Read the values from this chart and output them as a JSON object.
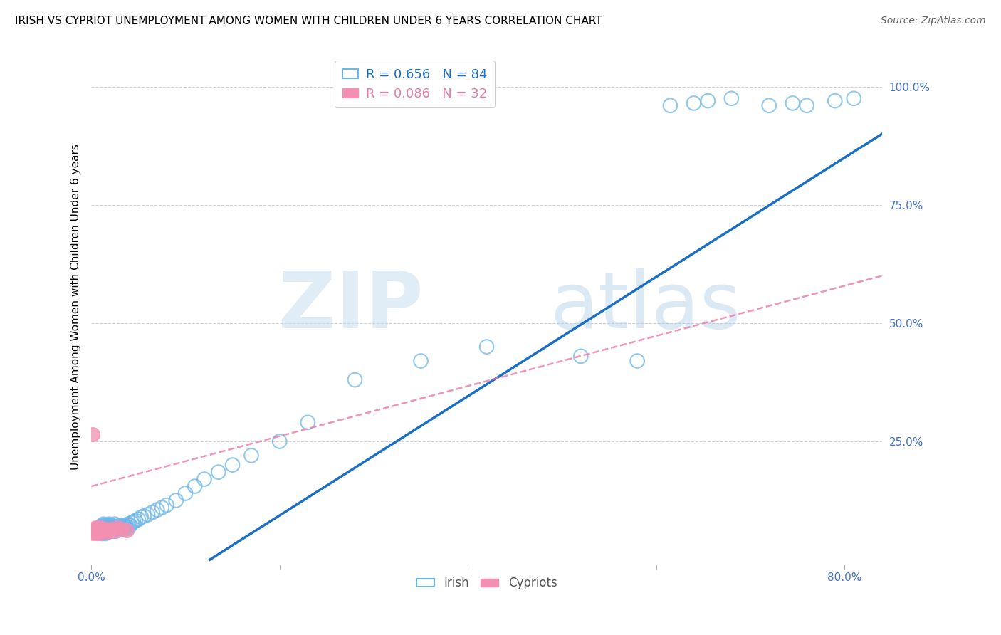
{
  "title": "IRISH VS CYPRIOT UNEMPLOYMENT AMONG WOMEN WITH CHILDREN UNDER 6 YEARS CORRELATION CHART",
  "source": "Source: ZipAtlas.com",
  "ylabel": "Unemployment Among Women with Children Under 6 years",
  "legend_irish_r": "R = 0.656",
  "legend_irish_n": "N = 84",
  "legend_cypriot_r": "R = 0.086",
  "legend_cypriot_n": "N = 32",
  "legend_label_irish": "Irish",
  "legend_label_cypriot": "Cypriots",
  "irish_color": "#6eb6e8",
  "cypriot_color": "#f48fb1",
  "irish_line_color": "#1a6fc4",
  "cypriot_line_color": "#e87aaa",
  "xlim": [
    0.0,
    0.84
  ],
  "ylim": [
    -0.01,
    1.08
  ],
  "xtick_positions": [
    0.0,
    0.8
  ],
  "xtick_labels": [
    "0.0%",
    "80.0%"
  ],
  "ytick_positions": [
    0.25,
    0.5,
    0.75,
    1.0
  ],
  "ytick_labels": [
    "25.0%",
    "50.0%",
    "75.0%",
    "100.0%"
  ],
  "title_fontsize": 11,
  "source_fontsize": 10,
  "axis_color": "#4472c4",
  "irish_line_x": [
    0.126,
    0.84
  ],
  "irish_line_y": [
    0.0,
    0.9
  ],
  "cypriot_line_x": [
    0.0,
    0.84
  ],
  "cypriot_line_y": [
    0.155,
    0.6
  ],
  "irish_x": [
    0.008,
    0.009,
    0.01,
    0.01,
    0.011,
    0.011,
    0.012,
    0.012,
    0.013,
    0.013,
    0.014,
    0.014,
    0.015,
    0.015,
    0.015,
    0.016,
    0.016,
    0.017,
    0.017,
    0.018,
    0.018,
    0.019,
    0.019,
    0.02,
    0.02,
    0.021,
    0.021,
    0.022,
    0.022,
    0.023,
    0.023,
    0.024,
    0.025,
    0.025,
    0.026,
    0.027,
    0.028,
    0.029,
    0.03,
    0.031,
    0.032,
    0.033,
    0.034,
    0.035,
    0.036,
    0.037,
    0.038,
    0.039,
    0.04,
    0.041,
    0.043,
    0.045,
    0.047,
    0.05,
    0.053,
    0.056,
    0.06,
    0.065,
    0.07,
    0.075,
    0.08,
    0.09,
    0.1,
    0.11,
    0.12,
    0.135,
    0.15,
    0.17,
    0.2,
    0.23,
    0.28,
    0.35,
    0.42,
    0.52,
    0.58,
    0.615,
    0.64,
    0.655,
    0.68,
    0.72,
    0.745,
    0.76,
    0.79,
    0.81
  ],
  "irish_y": [
    0.06,
    0.065,
    0.058,
    0.07,
    0.055,
    0.068,
    0.06,
    0.072,
    0.065,
    0.075,
    0.058,
    0.068,
    0.055,
    0.062,
    0.072,
    0.06,
    0.07,
    0.058,
    0.065,
    0.068,
    0.072,
    0.06,
    0.075,
    0.065,
    0.07,
    0.06,
    0.068,
    0.062,
    0.072,
    0.065,
    0.07,
    0.062,
    0.068,
    0.075,
    0.06,
    0.065,
    0.07,
    0.068,
    0.072,
    0.065,
    0.068,
    0.07,
    0.065,
    0.072,
    0.068,
    0.07,
    0.065,
    0.075,
    0.068,
    0.072,
    0.078,
    0.08,
    0.082,
    0.085,
    0.09,
    0.092,
    0.095,
    0.1,
    0.105,
    0.11,
    0.115,
    0.125,
    0.14,
    0.155,
    0.17,
    0.185,
    0.2,
    0.22,
    0.25,
    0.29,
    0.38,
    0.42,
    0.45,
    0.43,
    0.42,
    0.96,
    0.965,
    0.97,
    0.975,
    0.96,
    0.965,
    0.96,
    0.97,
    0.975
  ],
  "cypriot_x": [
    0.001,
    0.002,
    0.003,
    0.003,
    0.004,
    0.004,
    0.005,
    0.005,
    0.006,
    0.006,
    0.007,
    0.007,
    0.008,
    0.008,
    0.009,
    0.009,
    0.01,
    0.01,
    0.011,
    0.012,
    0.013,
    0.014,
    0.015,
    0.016,
    0.018,
    0.02,
    0.022,
    0.025,
    0.028,
    0.032,
    0.038,
    0.001
  ],
  "cypriot_y": [
    0.055,
    0.06,
    0.058,
    0.065,
    0.06,
    0.068,
    0.055,
    0.062,
    0.058,
    0.065,
    0.06,
    0.068,
    0.055,
    0.062,
    0.058,
    0.065,
    0.06,
    0.068,
    0.062,
    0.065,
    0.058,
    0.062,
    0.06,
    0.065,
    0.058,
    0.062,
    0.065,
    0.06,
    0.068,
    0.065,
    0.062,
    0.265
  ]
}
